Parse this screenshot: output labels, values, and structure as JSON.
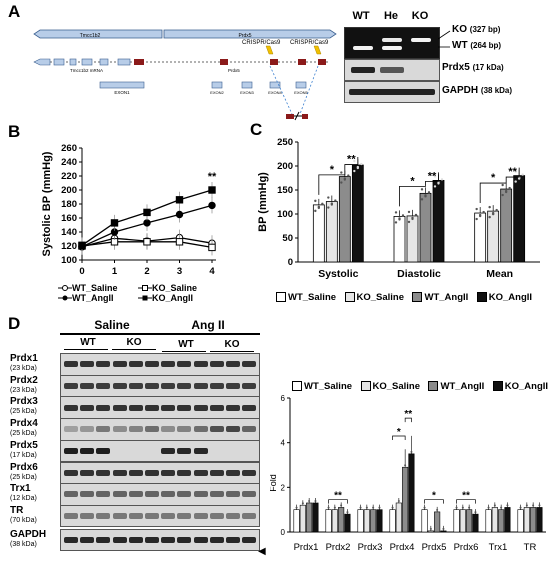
{
  "panelA": {
    "letter": "A",
    "genes": {
      "left": "Tmcc1b2",
      "right": "Prdx5"
    },
    "mrna_label": "Tmcc1b2 mRNA",
    "prdx5_label": "Prdx5",
    "crispr_left": "CRISPR/Cas9",
    "crispr_right": "CRISPR/Cas9",
    "exon_main": "EXON1",
    "exons": [
      "EXON2",
      "EXON3",
      "EXON4",
      "EXON5"
    ],
    "gel_lanes": [
      "WT",
      "He",
      "KO"
    ],
    "gel_labels": {
      "ko": "KO",
      "ko_size": "(327 bp)",
      "wt": "WT",
      "wt_size": "(264 bp)"
    },
    "prdx5": {
      "name": "Prdx5",
      "size": "(17 kDa)"
    },
    "gapdh": {
      "name": "GAPDH",
      "size": "(38 kDa)"
    }
  },
  "panelB": {
    "letter": "B",
    "sig": "**",
    "legend": [
      "WT_Saline",
      "KO_Saline",
      "WT_AngII",
      "KO_AngII"
    ],
    "chart_data": {
      "type": "line",
      "ylabel": "Systolic BP (mmHg)",
      "xlabel": "",
      "x": [
        0,
        1,
        2,
        3,
        4
      ],
      "ylim": [
        100,
        260
      ],
      "yticks": [
        100,
        120,
        140,
        160,
        180,
        200,
        220,
        240,
        260
      ],
      "series": [
        {
          "name": "WT_Saline",
          "values": [
            119,
            131,
            127,
            132,
            124
          ]
        },
        {
          "name": "KO_Saline",
          "values": [
            120,
            126,
            126,
            126,
            118
          ]
        },
        {
          "name": "WT_AngII",
          "values": [
            119,
            140,
            153,
            165,
            178
          ]
        },
        {
          "name": "KO_AngII",
          "values": [
            121,
            153,
            168,
            186,
            200
          ]
        }
      ]
    }
  },
  "panelC": {
    "letter": "C",
    "sig": {
      "star": "*",
      "double": "**"
    },
    "legend": [
      "WT_Saline",
      "KO_Saline",
      "WT_AngII",
      "KO_AngII"
    ],
    "chart_data": {
      "type": "bar",
      "ylabel": "BP (mmHg)",
      "categories": [
        "Systolic",
        "Diastolic",
        "Mean"
      ],
      "ylim": [
        0,
        250
      ],
      "yticks": [
        0,
        50,
        100,
        150,
        200,
        250
      ],
      "series": [
        {
          "name": "WT_Saline",
          "values": [
            119,
            95,
            102
          ]
        },
        {
          "name": "KO_Saline",
          "values": [
            126,
            96,
            106
          ]
        },
        {
          "name": "WT_AngII",
          "values": [
            178,
            143,
            152
          ]
        },
        {
          "name": "KO_AngII",
          "values": [
            202,
            170,
            180
          ]
        }
      ]
    }
  },
  "panelD": {
    "letter": "D",
    "groups": [
      "Saline",
      "Ang II"
    ],
    "lanes": [
      "WT",
      "KO",
      "WT",
      "KO"
    ],
    "blots": [
      {
        "name": "Prdx1",
        "size": "(23 kDa)"
      },
      {
        "name": "Prdx2",
        "size": "(23 kDa)"
      },
      {
        "name": "Prdx3",
        "size": "(25 kDa)"
      },
      {
        "name": "Prdx4",
        "size": "(25 kDa)"
      },
      {
        "name": "Prdx5",
        "size": "(17 kDa)"
      },
      {
        "name": "Prdx6",
        "size": "(25 kDa)"
      },
      {
        "name": "Trx1",
        "size": "(12 kDa)"
      },
      {
        "name": "TR",
        "size": "(70 kDa)"
      },
      {
        "name": "GAPDH",
        "size": "(38 kDa)"
      }
    ],
    "arrow": "◀",
    "legend": [
      "WT_Saline",
      "KO_Saline",
      "WT_AngII",
      "KO_AngII"
    ],
    "chart_data": {
      "type": "bar",
      "ylabel": "Fold",
      "categories": [
        "Prdx1",
        "Prdx2",
        "Prdx3",
        "Prdx4",
        "Prdx5",
        "Prdx6",
        "Trx1",
        "TR"
      ],
      "ylim": [
        0,
        6
      ],
      "yticks": [
        0,
        2,
        4,
        6
      ],
      "series": [
        {
          "name": "WT_Saline",
          "values": [
            1.0,
            1.0,
            1.0,
            1.0,
            1.0,
            1.0,
            1.0,
            1.0
          ]
        },
        {
          "name": "KO_Saline",
          "values": [
            1.2,
            1.0,
            1.0,
            1.3,
            0.05,
            1.0,
            1.1,
            1.1
          ]
        },
        {
          "name": "WT_AngII",
          "values": [
            1.3,
            1.1,
            1.0,
            2.9,
            0.9,
            1.0,
            1.0,
            1.1
          ]
        },
        {
          "name": "KO_AngII",
          "values": [
            1.3,
            0.8,
            1.0,
            3.5,
            0.05,
            0.8,
            1.1,
            1.1
          ]
        }
      ],
      "significance": [
        {
          "category": "Prdx2",
          "label": "**"
        },
        {
          "category": "Prdx4",
          "label": "*"
        },
        {
          "category": "Prdx4",
          "label": "**"
        },
        {
          "category": "Prdx5",
          "label": "*"
        },
        {
          "category": "Prdx6",
          "label": "**"
        }
      ]
    }
  },
  "colors": {
    "white": "#ffffff",
    "light": "#e6e6e6",
    "gray": "#8c8c8c",
    "black": "#111111",
    "gene": "#b8cde8",
    "gene_border": "#3a5f8f",
    "exon": "#8b1a1a",
    "crispr": "#f0c000"
  }
}
